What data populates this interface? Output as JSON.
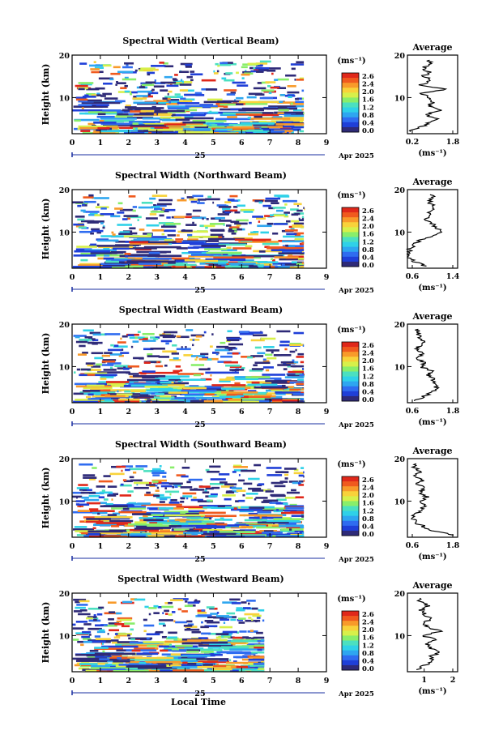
{
  "figure": {
    "x_label": "Local Time",
    "date_label": "Apr 2025",
    "day_label": "25",
    "units_label": "(ms⁻¹)",
    "average_title": "Average",
    "average_xunit": "(ms⁻¹)"
  },
  "chart_data": [
    {
      "type": "heatmap",
      "title": "Spectral Width (Vertical Beam)",
      "xlabel": "Local Time",
      "ylabel": "Height (km)",
      "xlim": [
        0,
        9
      ],
      "ylim": [
        1.5,
        20
      ],
      "x_ticks": [
        "0",
        "1",
        "2",
        "3",
        "4",
        "5",
        "6",
        "7",
        "8",
        "9"
      ],
      "y_ticks": [
        "10",
        "20"
      ],
      "colorbar": {
        "label": "(ms⁻¹)",
        "range": [
          0.0,
          2.8
        ],
        "ticks": [
          "2.6",
          "2.4",
          "2.0",
          "1.6",
          "1.2",
          "0.8",
          "0.4",
          "0.0"
        ]
      },
      "data_extent_hours": [
        0,
        8.2
      ],
      "average_profile": {
        "title": "Average",
        "xlim": [
          0.2,
          1.8
        ],
        "x_ticks": [
          "0.2",
          "1.8"
        ],
        "y_ticks": [
          "10",
          "20"
        ],
        "points": [
          [
            0.3,
            2
          ],
          [
            0.6,
            3
          ],
          [
            0.9,
            4
          ],
          [
            1.1,
            5
          ],
          [
            0.8,
            6
          ],
          [
            1.2,
            7
          ],
          [
            0.9,
            8
          ],
          [
            1.0,
            9
          ],
          [
            0.8,
            10
          ],
          [
            0.7,
            11
          ],
          [
            1.4,
            12
          ],
          [
            0.6,
            13
          ],
          [
            1.0,
            14
          ],
          [
            0.7,
            15
          ],
          [
            0.9,
            16
          ],
          [
            0.7,
            17
          ],
          [
            1.0,
            18
          ],
          [
            0.8,
            19
          ]
        ]
      }
    },
    {
      "type": "heatmap",
      "title": "Spectral Width (Northward Beam)",
      "xlabel": "Local Time",
      "ylabel": "Height (km)",
      "xlim": [
        0,
        9
      ],
      "ylim": [
        1.5,
        20
      ],
      "x_ticks": [
        "0",
        "1",
        "2",
        "3",
        "4",
        "5",
        "6",
        "7",
        "8",
        "9"
      ],
      "y_ticks": [
        "10",
        "20"
      ],
      "colorbar": {
        "label": "(ms⁻¹)",
        "range": [
          0.0,
          2.8
        ],
        "ticks": [
          "2.6",
          "2.4",
          "2.0",
          "1.6",
          "1.2",
          "0.8",
          "0.4",
          "0.0"
        ]
      },
      "data_extent_hours": [
        0,
        8.2
      ],
      "average_profile": {
        "title": "Average",
        "xlim": [
          0.6,
          1.4
        ],
        "x_ticks": [
          "0.6",
          "1.4"
        ],
        "y_ticks": [
          "10",
          "20"
        ],
        "points": [
          [
            0.9,
            2
          ],
          [
            0.7,
            3
          ],
          [
            0.62,
            4
          ],
          [
            0.65,
            5
          ],
          [
            0.62,
            6
          ],
          [
            0.7,
            7
          ],
          [
            0.8,
            8
          ],
          [
            1.0,
            9
          ],
          [
            1.15,
            10
          ],
          [
            1.05,
            11
          ],
          [
            1.0,
            12
          ],
          [
            0.9,
            13
          ],
          [
            1.0,
            14
          ],
          [
            0.95,
            15
          ],
          [
            1.05,
            16
          ],
          [
            0.95,
            17
          ],
          [
            1.0,
            18
          ],
          [
            0.98,
            19
          ]
        ]
      }
    },
    {
      "type": "heatmap",
      "title": "Spectral Width (Eastward Beam)",
      "xlabel": "Local Time",
      "ylabel": "Height (km)",
      "xlim": [
        0,
        9
      ],
      "ylim": [
        1.5,
        20
      ],
      "x_ticks": [
        "0",
        "1",
        "2",
        "3",
        "4",
        "5",
        "6",
        "7",
        "8",
        "9"
      ],
      "y_ticks": [
        "10",
        "20"
      ],
      "colorbar": {
        "label": "(ms⁻¹)",
        "range": [
          0.0,
          2.8
        ],
        "ticks": [
          "2.6",
          "2.4",
          "2.0",
          "1.6",
          "1.2",
          "0.8",
          "0.4",
          "0.0"
        ]
      },
      "data_extent_hours": [
        0,
        8.2
      ],
      "average_profile": {
        "title": "Average",
        "xlim": [
          0.6,
          1.8
        ],
        "x_ticks": [
          "0.6",
          "1.8"
        ],
        "y_ticks": [
          "10",
          "20"
        ],
        "points": [
          [
            0.8,
            2
          ],
          [
            1.0,
            3
          ],
          [
            1.2,
            4
          ],
          [
            1.3,
            5
          ],
          [
            1.25,
            6
          ],
          [
            1.2,
            7
          ],
          [
            1.1,
            8
          ],
          [
            1.2,
            9
          ],
          [
            0.9,
            10
          ],
          [
            1.0,
            11
          ],
          [
            0.85,
            12
          ],
          [
            1.0,
            13
          ],
          [
            0.8,
            14
          ],
          [
            0.9,
            15
          ],
          [
            1.0,
            16
          ],
          [
            0.85,
            17
          ],
          [
            0.9,
            18
          ],
          [
            0.8,
            19
          ]
        ]
      }
    },
    {
      "type": "heatmap",
      "title": "Spectral Width (Southward Beam)",
      "xlabel": "Local Time",
      "ylabel": "Height (km)",
      "xlim": [
        0,
        9
      ],
      "ylim": [
        1.5,
        20
      ],
      "x_ticks": [
        "0",
        "1",
        "2",
        "3",
        "4",
        "5",
        "6",
        "7",
        "8",
        "9"
      ],
      "y_ticks": [
        "10",
        "20"
      ],
      "colorbar": {
        "label": "(ms⁻¹)",
        "range": [
          0.0,
          2.8
        ],
        "ticks": [
          "2.6",
          "2.4",
          "2.0",
          "1.6",
          "1.2",
          "0.8",
          "0.4",
          "0.0"
        ]
      },
      "data_extent_hours": [
        0,
        8.2
      ],
      "average_profile": {
        "title": "Average",
        "xlim": [
          0.6,
          1.8
        ],
        "x_ticks": [
          "0.6",
          "1.8"
        ],
        "y_ticks": [
          "10",
          "20"
        ],
        "points": [
          [
            1.7,
            2
          ],
          [
            1.2,
            3
          ],
          [
            1.0,
            4
          ],
          [
            0.8,
            5
          ],
          [
            0.7,
            6
          ],
          [
            0.8,
            7
          ],
          [
            0.9,
            8
          ],
          [
            1.0,
            9
          ],
          [
            0.95,
            10
          ],
          [
            1.05,
            11
          ],
          [
            0.9,
            12
          ],
          [
            1.0,
            13
          ],
          [
            0.85,
            14
          ],
          [
            0.95,
            15
          ],
          [
            0.8,
            16
          ],
          [
            0.9,
            17
          ],
          [
            0.75,
            18
          ],
          [
            0.8,
            19
          ]
        ]
      }
    },
    {
      "type": "heatmap",
      "title": "Spectral Width (Westward Beam)",
      "xlabel": "Local Time",
      "ylabel": "Height (km)",
      "xlim": [
        0,
        9
      ],
      "ylim": [
        1.5,
        20
      ],
      "x_ticks": [
        "0",
        "1",
        "2",
        "3",
        "4",
        "5",
        "6",
        "7",
        "8",
        "9"
      ],
      "y_ticks": [
        "10",
        "20"
      ],
      "colorbar": {
        "label": "(ms⁻¹)",
        "range": [
          0.0,
          2.8
        ],
        "ticks": [
          "2.6",
          "2.4",
          "2.0",
          "1.6",
          "1.2",
          "0.8",
          "0.4",
          "0.0"
        ]
      },
      "data_extent_hours": [
        0,
        6.8
      ],
      "average_profile": {
        "title": "Average",
        "xlim": [
          0.5,
          2.0
        ],
        "x_ticks": [
          "1",
          "2"
        ],
        "y_ticks": [
          "10",
          "20"
        ],
        "points": [
          [
            0.8,
            2
          ],
          [
            1.0,
            3
          ],
          [
            1.3,
            4
          ],
          [
            1.2,
            5
          ],
          [
            1.4,
            6
          ],
          [
            1.2,
            7
          ],
          [
            1.1,
            8
          ],
          [
            1.3,
            9
          ],
          [
            1.0,
            10
          ],
          [
            1.5,
            11
          ],
          [
            1.1,
            12
          ],
          [
            1.0,
            13
          ],
          [
            1.2,
            14
          ],
          [
            1.0,
            15
          ],
          [
            0.9,
            16
          ],
          [
            1.1,
            17
          ],
          [
            0.9,
            18
          ],
          [
            0.8,
            19
          ]
        ]
      }
    }
  ],
  "colors": {
    "colormap": [
      "#2e2a78",
      "#1f3fd8",
      "#2f6cf0",
      "#2ea6f0",
      "#2fd1e8",
      "#4be0c0",
      "#89ee6a",
      "#d7f04a",
      "#f8d23a",
      "#f89a2a",
      "#f05a1e",
      "#e0281a"
    ],
    "axis": "#000000",
    "time_marker": "#1a2fa0"
  }
}
